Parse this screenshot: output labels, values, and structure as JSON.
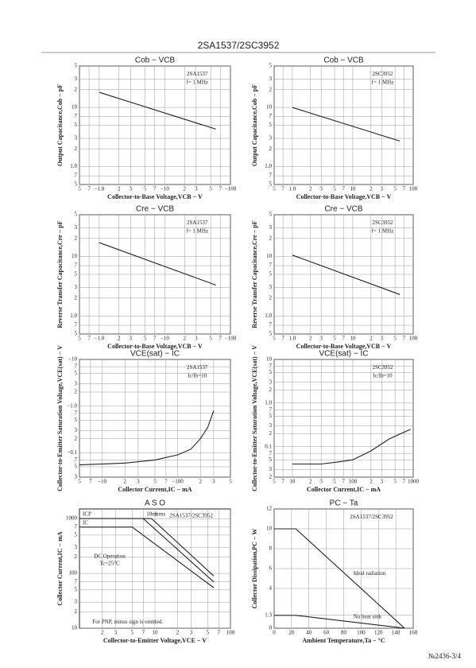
{
  "header": {
    "title": "2SA1537/2SC3952"
  },
  "footer": {
    "page": "№2436-3/4"
  },
  "chart_data": [
    {
      "type": "line",
      "title": "Cob − VCB",
      "xlabel": "Collector-to-Base Voltage,VCB − V",
      "ylabel": "Output Capacitance,Cob − pF",
      "log_x": true,
      "log_y": true,
      "grid": true,
      "xlim": [
        0.5,
        100
      ],
      "ylim": [
        0.5,
        50
      ],
      "xticks": [
        {
          "value": 0.5,
          "label": "5"
        },
        {
          "value": 0.7,
          "label": "7"
        },
        {
          "value": 1,
          "label": "−1.0"
        },
        2,
        3,
        5,
        7,
        {
          "value": 10,
          "label": "−10"
        },
        {
          "value": 20,
          "label": "2"
        },
        {
          "value": 30,
          "label": "3"
        },
        {
          "value": 50,
          "label": "5"
        },
        {
          "value": 70,
          "label": "7"
        },
        {
          "value": 100,
          "label": "−100"
        }
      ],
      "yticks": [
        {
          "value": 0.5,
          "label": "5"
        },
        {
          "value": 0.7,
          "label": "7"
        },
        {
          "value": 1,
          "label": "1.0"
        },
        2,
        3,
        5,
        7,
        10,
        {
          "value": 20,
          "label": "2"
        },
        {
          "value": 30,
          "label": "3"
        },
        {
          "value": 50,
          "label": "5"
        }
      ],
      "annotations": [
        "2SA1537",
        "f= 1 MHz"
      ],
      "series": [
        {
          "color": "#222",
          "x": [
            1,
            60
          ],
          "values": [
            18,
            4.3
          ]
        }
      ]
    },
    {
      "type": "line",
      "title": "Cob − VCB",
      "xlabel": "Collector-to-Base Voltage,VCB − V",
      "ylabel": "Output Capacitance,Cob − pF",
      "log_x": true,
      "log_y": true,
      "grid": true,
      "xlim": [
        0.5,
        100
      ],
      "ylim": [
        0.5,
        50
      ],
      "xticks": [
        {
          "value": 0.5,
          "label": "5"
        },
        {
          "value": 0.7,
          "label": "7"
        },
        {
          "value": 1,
          "label": "1.0"
        },
        2,
        3,
        5,
        7,
        10,
        {
          "value": 20,
          "label": "2"
        },
        {
          "value": 30,
          "label": "3"
        },
        {
          "value": 50,
          "label": "5"
        },
        {
          "value": 70,
          "label": "7"
        },
        100
      ],
      "yticks": [
        {
          "value": 0.5,
          "label": "5"
        },
        {
          "value": 0.7,
          "label": "7"
        },
        {
          "value": 1,
          "label": "1.0"
        },
        2,
        3,
        5,
        7,
        10,
        {
          "value": 20,
          "label": "2"
        },
        {
          "value": 30,
          "label": "3"
        },
        {
          "value": 50,
          "label": "5"
        }
      ],
      "annotations": [
        "2SC3952",
        "f= 1 MHz"
      ],
      "series": [
        {
          "color": "#222",
          "x": [
            1,
            60
          ],
          "values": [
            10,
            2.7
          ]
        }
      ]
    },
    {
      "type": "line",
      "title": "Cre − VCB",
      "xlabel": "Collector-to-Base Voltage,VCB − V",
      "ylabel": "Reverse Transfer Capacitance,Cre − pF",
      "log_x": true,
      "log_y": true,
      "grid": true,
      "xlim": [
        0.5,
        100
      ],
      "ylim": [
        0.5,
        50
      ],
      "xticks": [
        {
          "value": 0.5,
          "label": "5"
        },
        {
          "value": 0.7,
          "label": "7"
        },
        {
          "value": 1,
          "label": "−1.0"
        },
        2,
        3,
        5,
        7,
        {
          "value": 10,
          "label": "−10"
        },
        {
          "value": 20,
          "label": "2"
        },
        {
          "value": 30,
          "label": "3"
        },
        {
          "value": 50,
          "label": "5"
        },
        {
          "value": 70,
          "label": "7"
        },
        {
          "value": 100,
          "label": "−100"
        }
      ],
      "yticks": [
        {
          "value": 0.5,
          "label": "5"
        },
        {
          "value": 0.7,
          "label": "7"
        },
        {
          "value": 1,
          "label": "1.0"
        },
        2,
        3,
        5,
        7,
        10,
        {
          "value": 20,
          "label": "2"
        },
        {
          "value": 30,
          "label": "3"
        },
        {
          "value": 50,
          "label": "5"
        }
      ],
      "annotations": [
        "2SA1537",
        "f= 1 MHz"
      ],
      "series": [
        {
          "color": "#222",
          "x": [
            1,
            60
          ],
          "values": [
            17,
            3.3
          ]
        }
      ]
    },
    {
      "type": "line",
      "title": "Cre − VCB",
      "xlabel": "Collector-to-Base Voltage,VCB − V",
      "ylabel": "Reverse Transfer Capacitance,Cre − pF",
      "log_x": true,
      "log_y": true,
      "grid": true,
      "xlim": [
        0.5,
        100
      ],
      "ylim": [
        0.5,
        50
      ],
      "xticks": [
        {
          "value": 0.5,
          "label": "5"
        },
        {
          "value": 0.7,
          "label": "7"
        },
        {
          "value": 1,
          "label": "1.0"
        },
        2,
        3,
        5,
        7,
        10,
        {
          "value": 20,
          "label": "2"
        },
        {
          "value": 30,
          "label": "3"
        },
        {
          "value": 50,
          "label": "5"
        },
        {
          "value": 70,
          "label": "7"
        },
        100
      ],
      "yticks": [
        {
          "value": 0.5,
          "label": "5"
        },
        {
          "value": 0.7,
          "label": "7"
        },
        {
          "value": 1,
          "label": "1.0"
        },
        2,
        3,
        5,
        7,
        10,
        {
          "value": 20,
          "label": "2"
        },
        {
          "value": 30,
          "label": "3"
        },
        {
          "value": 50,
          "label": "5"
        }
      ],
      "annotations": [
        "2SC3952",
        "f= 1 MHz"
      ],
      "series": [
        {
          "color": "#222",
          "x": [
            1,
            60
          ],
          "values": [
            10.5,
            2.3
          ]
        }
      ]
    },
    {
      "type": "line",
      "title": "VCE(sat) − IC",
      "xlabel": "Collector Current,IC − mA",
      "ylabel": "Collector-to-Emitter Saturation Voltage,VCE(sat) − V",
      "log_x": true,
      "log_y": true,
      "grid": true,
      "xlim": [
        5,
        500
      ],
      "ylim": [
        0.03,
        10
      ],
      "xticks": [
        5,
        7,
        {
          "value": 10,
          "label": "−10"
        },
        {
          "value": 20,
          "label": "2"
        },
        {
          "value": 30,
          "label": "3"
        },
        {
          "value": 50,
          "label": "5"
        },
        {
          "value": 70,
          "label": "7"
        },
        {
          "value": 100,
          "label": "−100"
        },
        {
          "value": 200,
          "label": "2"
        },
        {
          "value": 300,
          "label": "3"
        },
        {
          "value": 500,
          "label": "5"
        }
      ],
      "yticks": [
        {
          "value": 0.03,
          "label": "3"
        },
        {
          "value": 0.05,
          "label": "5"
        },
        {
          "value": 0.07,
          "label": "7"
        },
        {
          "value": 0.1,
          "label": "−0.1"
        },
        {
          "value": 0.2,
          "label": "2"
        },
        {
          "value": 0.3,
          "label": "3"
        },
        {
          "value": 0.5,
          "label": "5"
        },
        {
          "value": 0.7,
          "label": "7"
        },
        {
          "value": 1,
          "label": "−1.0"
        },
        2,
        3,
        5,
        7,
        {
          "value": 10,
          "label": "−10"
        }
      ],
      "annotations": [
        "2SA1537",
        "Ic/Ib=10"
      ],
      "series": [
        {
          "color": "#222",
          "x": [
            5,
            20,
            50,
            100,
            150,
            200,
            250,
            300
          ],
          "values": [
            0.055,
            0.06,
            0.07,
            0.09,
            0.12,
            0.2,
            0.35,
            0.8
          ]
        }
      ]
    },
    {
      "type": "line",
      "title": "VCE(sat) − IC",
      "xlabel": "Collector Current,IC − mA",
      "ylabel": "Collector-to-Emitter Saturation Voltage,VCE(sat) − V",
      "log_x": true,
      "log_y": true,
      "grid": true,
      "xlim": [
        5,
        1000
      ],
      "ylim": [
        0.02,
        10
      ],
      "xticks": [
        5,
        7,
        10,
        {
          "value": 20,
          "label": "2"
        },
        {
          "value": 30,
          "label": "3"
        },
        {
          "value": 50,
          "label": "5"
        },
        {
          "value": 70,
          "label": "7"
        },
        100,
        {
          "value": 200,
          "label": "2"
        },
        {
          "value": 300,
          "label": "3"
        },
        {
          "value": 500,
          "label": "5"
        },
        {
          "value": 700,
          "label": "7"
        },
        1000
      ],
      "yticks": [
        {
          "value": 0.02,
          "label": "2"
        },
        {
          "value": 0.03,
          "label": "3"
        },
        {
          "value": 0.05,
          "label": "5"
        },
        {
          "value": 0.07,
          "label": "7"
        },
        0.1,
        {
          "value": 0.2,
          "label": "2"
        },
        {
          "value": 0.3,
          "label": "3"
        },
        {
          "value": 0.5,
          "label": "5"
        },
        {
          "value": 0.7,
          "label": "7"
        },
        {
          "value": 1,
          "label": "1.0"
        },
        2,
        3,
        5,
        7,
        10
      ],
      "annotations": [
        "2SC3952",
        "Ic/Ib=10"
      ],
      "series": [
        {
          "color": "#222",
          "x": [
            10,
            30,
            60,
            100,
            200,
            400,
            900
          ],
          "values": [
            0.04,
            0.04,
            0.045,
            0.05,
            0.08,
            0.15,
            0.25
          ]
        }
      ]
    },
    {
      "type": "line",
      "title": "A S O",
      "xlabel": "Collector-to-Emitter Voltage,VCE − V",
      "ylabel": "Collector Current,IC − mA",
      "log_x": true,
      "log_y": true,
      "grid": true,
      "xlim": [
        1,
        100
      ],
      "ylim": [
        10,
        1500
      ],
      "xticks": [
        2,
        3,
        5,
        7,
        10,
        {
          "value": 20,
          "label": "2"
        },
        {
          "value": 30,
          "label": "3"
        },
        {
          "value": 50,
          "label": "5"
        },
        {
          "value": 70,
          "label": "7"
        },
        100
      ],
      "yticks": [
        10,
        {
          "value": 20,
          "label": "2"
        },
        {
          "value": 30,
          "label": "3"
        },
        {
          "value": 50,
          "label": "5"
        },
        {
          "value": 70,
          "label": "7"
        },
        100,
        {
          "value": 200,
          "label": "2"
        },
        {
          "value": 300,
          "label": "3"
        },
        {
          "value": 500,
          "label": "5"
        },
        {
          "value": 700,
          "label": "7"
        },
        1000
      ],
      "annotations": [
        "2SA1537/2SC3952",
        "DC Operation",
        "Tc=25°C",
        "For PNP, minus sign is omitted."
      ],
      "series": [
        {
          "name": "ICP",
          "color": "#222",
          "x": [
            1,
            9
          ],
          "values": [
            1000,
            1000
          ]
        },
        {
          "name": "IC",
          "color": "#222",
          "x": [
            1,
            5
          ],
          "values": [
            700,
            700
          ]
        },
        {
          "name": "1 ms",
          "color": "#222",
          "x": [
            9,
            60
          ],
          "values": [
            1000,
            90
          ]
        },
        {
          "name": "10ms",
          "color": "#222",
          "x": [
            7,
            60
          ],
          "values": [
            1000,
            70
          ]
        },
        {
          "color": "#222",
          "x": [
            5,
            60
          ],
          "values": [
            700,
            55
          ]
        }
      ]
    },
    {
      "type": "line",
      "title": "PC − Ta",
      "xlabel": "Ambient Temperature,Ta − °C",
      "ylabel": "Collector Dissipation,PC − W",
      "log_x": false,
      "log_y": false,
      "grid": true,
      "xlim": [
        0,
        160
      ],
      "ylim": [
        0,
        12
      ],
      "xticks": [
        0,
        20,
        40,
        60,
        80,
        100,
        120,
        140,
        160
      ],
      "yticks": [
        0,
        1.3,
        4,
        6,
        8,
        10,
        12
      ],
      "annotations": [
        "2SA1537/2SC3952"
      ],
      "series": [
        {
          "name": "Ideal radiation",
          "color": "#222",
          "x": [
            0,
            25,
            150
          ],
          "values": [
            10,
            10,
            0
          ]
        },
        {
          "name": "No heat sink",
          "color": "#222",
          "x": [
            0,
            25,
            150
          ],
          "values": [
            1.3,
            1.3,
            0
          ]
        }
      ]
    }
  ]
}
